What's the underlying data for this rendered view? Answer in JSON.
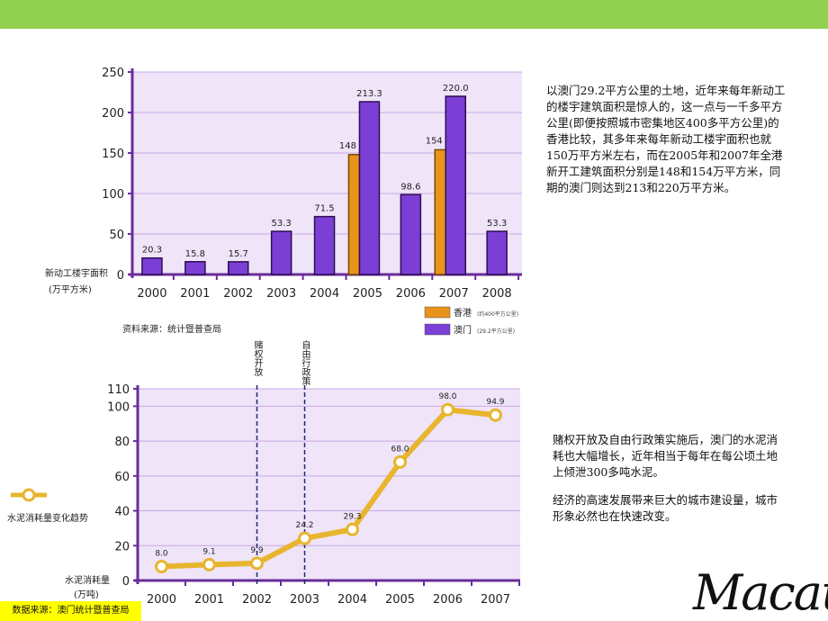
{
  "chart_data": [
    {
      "type": "bar",
      "y_label": "新动工楼宇面积",
      "y_unit": "(万平方米)",
      "source": "资料来源：统计暨普查局",
      "categories": [
        "2000",
        "2001",
        "2002",
        "2003",
        "2004",
        "2005",
        "2006",
        "2007",
        "2008"
      ],
      "series": [
        {
          "name": "香港",
          "legend_note": "(约400平方公里)",
          "color": "#e8931c",
          "values": [
            null,
            null,
            null,
            null,
            null,
            148,
            null,
            154,
            null
          ]
        },
        {
          "name": "澳门",
          "legend_note": "(29.2平方公里)",
          "color": "#7b3fd6",
          "values": [
            20.3,
            15.8,
            15.7,
            53.3,
            71.5,
            213.3,
            98.6,
            220.0,
            53.3
          ],
          "value_labels": [
            "20.3",
            "15.8",
            "15.7",
            "53.3",
            "71.5",
            "213.3",
            "98.6",
            "220.0",
            "53.3"
          ]
        }
      ],
      "ylim": [
        0,
        250
      ],
      "yticks": [
        0,
        50,
        100,
        150,
        200,
        250
      ],
      "grid": true
    },
    {
      "type": "line",
      "y_label": "水泥消耗量",
      "y_unit": "(万吨)",
      "legend": "水泥消耗量变化趋势",
      "categories": [
        "2000",
        "2001",
        "2002",
        "2003",
        "2004",
        "2005",
        "2006",
        "2007"
      ],
      "values": [
        8.0,
        9.1,
        9.9,
        24.2,
        29.3,
        68.0,
        98.0,
        94.9
      ],
      "value_labels": [
        "8.0",
        "9.1",
        "9.9",
        "24.2",
        "29.3",
        "68.0",
        "98.0",
        "94.9"
      ],
      "color": "#e8b52e",
      "annotations": [
        {
          "label": "赌权开放",
          "category": "2002"
        },
        {
          "label": "自由行政策",
          "category": "2003"
        }
      ],
      "ylim": [
        0,
        110
      ],
      "yticks": [
        0,
        20,
        40,
        60,
        80,
        100,
        110
      ],
      "grid": true
    }
  ],
  "text": {
    "paragraph_1": "以澳门29.2平方公里的土地，近年来每年新动工的楼宇建筑面积是惊人的，这一点与一千多平方公里(即便按照城市密集地区400多平方公里)的香港比较，其多年来每年新动工楼宇面积也就150万平方米左右，而在2005年和2007年全港新开工建筑面积分别是148和154万平方米，同期的澳门则达到213和220万平方米。",
    "paragraph_2": "赌权开放及自由行政策实施后，澳门的水泥消耗也大幅增长，近年相当于每年在每公顷土地上倾泄300多吨水泥。",
    "paragraph_3": "经济的高速发展带来巨大的城市建设量，城市形象必然也在快速改变。"
  },
  "footer": {
    "source": "数据来源：澳门统计暨普查局",
    "logo": "Macau"
  }
}
